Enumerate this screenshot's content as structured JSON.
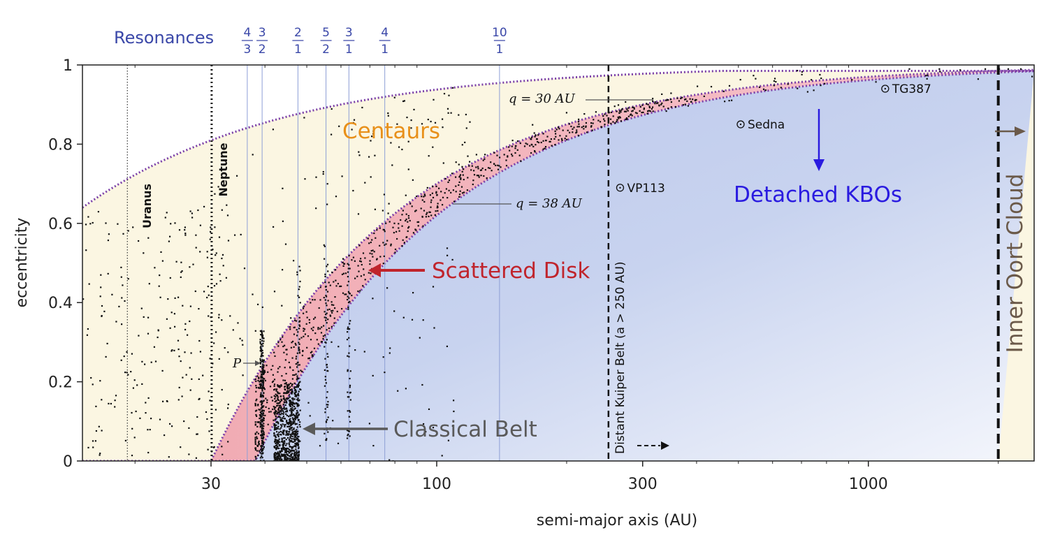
{
  "chart_data": {
    "type": "scatter",
    "xlabel": "semi-major axis (AU)",
    "ylabel": "eccentricity",
    "x_scale": "log",
    "xlim": [
      13,
      2800
    ],
    "ylim": [
      0,
      1
    ],
    "x_ticks": [
      30,
      100,
      300,
      1000
    ],
    "x_tick_labels": [
      "30",
      "100",
      "300",
      "1000"
    ],
    "y_ticks": [
      0,
      0.2,
      0.4,
      0.6,
      0.8,
      1
    ],
    "y_tick_labels": [
      "0",
      "0.2",
      "0.4",
      "0.6",
      "0.8",
      "1"
    ],
    "resonances_title": "Resonances",
    "resonances": [
      {
        "num": "4",
        "den": "3",
        "a": 36.4
      },
      {
        "num": "3",
        "den": "2",
        "a": 39.4
      },
      {
        "num": "2",
        "den": "1",
        "a": 47.7
      },
      {
        "num": "5",
        "den": "2",
        "a": 55.4
      },
      {
        "num": "3",
        "den": "1",
        "a": 62.6
      },
      {
        "num": "4",
        "den": "1",
        "a": 75.8
      },
      {
        "num": "10",
        "den": "1",
        "a": 139.8
      }
    ],
    "planets": [
      {
        "name": "Uranus",
        "a": 19.2
      },
      {
        "name": "Neptune",
        "a": 30.1
      }
    ],
    "perihelion_curves": [
      {
        "label": "q = 30 AU",
        "q": 30
      },
      {
        "label": "q = 38 AU",
        "q": 38
      }
    ],
    "aphelion_curve_Q": 23,
    "regions": [
      {
        "name": "Centaurs",
        "color": "#e8901a"
      },
      {
        "name": "Scattered Disk",
        "color": "#c0242c"
      },
      {
        "name": "Detached KBOs",
        "color": "#2a1be0"
      },
      {
        "name": "Classical Belt",
        "color": "#5a5a5a"
      },
      {
        "name": "Inner Oort Cloud",
        "color": "#6b5a4a"
      }
    ],
    "distant_kuiper_belt": {
      "label": "Distant Kuiper Belt (a > 250 AU)",
      "a": 250
    },
    "inner_oort_a": 2000,
    "named_objects": [
      {
        "name": "VP113",
        "a": 266,
        "e": 0.69
      },
      {
        "name": "Sedna",
        "a": 506,
        "e": 0.85
      },
      {
        "name": "TG387",
        "a": 1094,
        "e": 0.94
      }
    ],
    "pluto_label": "P",
    "pluto": {
      "a": 39.5,
      "e": 0.25
    },
    "colors": {
      "centaur_fill": "#fbf6e2",
      "scattered_fill": "#f2b8bd",
      "detached_fill": "#b9c7ea",
      "curve": "#7a3fa8",
      "resonance_line": "#8e9fd6"
    }
  }
}
